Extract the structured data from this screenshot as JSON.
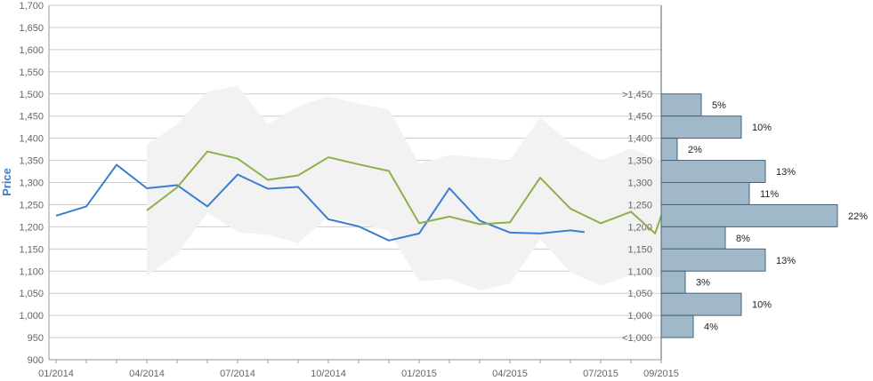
{
  "chart_data": {
    "type": "line",
    "ylabel": "Price",
    "ylim": [
      900,
      1700
    ],
    "yticks": [
      900,
      950,
      1000,
      1050,
      1100,
      1150,
      1200,
      1250,
      1300,
      1350,
      1400,
      1450,
      1500,
      1550,
      1600,
      1650,
      1700
    ],
    "ytick_labels": [
      "900",
      "950",
      "1,000",
      "1,050",
      "1,100",
      "1,150",
      "1,200",
      "1,250",
      "1,300",
      "1,350",
      "1,400",
      "1,450",
      "1,500",
      "1,550",
      "1,600",
      "1,650",
      "1,700"
    ],
    "xlim": [
      "2014-01",
      "2015-09"
    ],
    "xticks": [
      "2014-01",
      "2014-04",
      "2014-07",
      "2014-10",
      "2015-01",
      "2015-04",
      "2015-07",
      "2015-09"
    ],
    "xtick_labels": [
      "01/2014",
      "04/2014",
      "07/2014",
      "10/2014",
      "01/2015",
      "04/2015",
      "07/2015",
      "09/2015"
    ],
    "grid": true,
    "series": [
      {
        "color": "#3a7ed1",
        "points": [
          [
            "2014-01",
            1225
          ],
          [
            "2014-02",
            1246
          ],
          [
            "2014-03",
            1340
          ],
          [
            "2014-04",
            1287
          ],
          [
            "2014-05",
            1294
          ],
          [
            "2014-06",
            1246
          ],
          [
            "2014-07",
            1318
          ],
          [
            "2014-08",
            1286
          ],
          [
            "2014-09",
            1290
          ],
          [
            "2014-10",
            1217
          ],
          [
            "2014-11",
            1201
          ],
          [
            "2014-12",
            1169
          ],
          [
            "2015-01",
            1185
          ],
          [
            "2015-02",
            1287
          ],
          [
            "2015-03",
            1214
          ],
          [
            "2015-04",
            1187
          ],
          [
            "2015-05",
            1185
          ],
          [
            "2015-06",
            1192
          ],
          [
            "2015-06-15",
            1188
          ]
        ]
      },
      {
        "color": "#8db04a",
        "points": [
          [
            "2014-04",
            1237
          ],
          [
            "2014-05",
            1289
          ],
          [
            "2014-06",
            1370
          ],
          [
            "2014-07",
            1354
          ],
          [
            "2014-08",
            1306
          ],
          [
            "2014-09",
            1316
          ],
          [
            "2014-10",
            1357
          ],
          [
            "2014-11",
            1341
          ],
          [
            "2014-12",
            1326
          ],
          [
            "2015-01",
            1208
          ],
          [
            "2015-02",
            1223
          ],
          [
            "2015-03",
            1206
          ],
          [
            "2015-04",
            1210
          ],
          [
            "2015-05",
            1311
          ],
          [
            "2015-06",
            1241
          ],
          [
            "2015-07",
            1208
          ],
          [
            "2015-08",
            1234
          ],
          [
            "2015-08-25",
            1185
          ],
          [
            "2015-09",
            1225
          ]
        ]
      }
    ],
    "band": {
      "color": "#f2f2f2",
      "upper": [
        [
          "2014-04",
          1385
        ],
        [
          "2014-05",
          1432
        ],
        [
          "2014-06",
          1505
        ],
        [
          "2014-07",
          1518
        ],
        [
          "2014-08",
          1432
        ],
        [
          "2014-09",
          1472
        ],
        [
          "2014-10",
          1495
        ],
        [
          "2014-11",
          1478
        ],
        [
          "2014-12",
          1465
        ],
        [
          "2015-01",
          1342
        ],
        [
          "2015-02",
          1362
        ],
        [
          "2015-03",
          1357
        ],
        [
          "2015-04",
          1350
        ],
        [
          "2015-05",
          1447
        ],
        [
          "2015-06",
          1387
        ],
        [
          "2015-07",
          1350
        ],
        [
          "2015-08",
          1377
        ],
        [
          "2015-09",
          1350
        ]
      ],
      "lower": [
        [
          "2014-04",
          1090
        ],
        [
          "2014-05",
          1137
        ],
        [
          "2014-06",
          1232
        ],
        [
          "2014-07",
          1188
        ],
        [
          "2014-08",
          1182
        ],
        [
          "2014-09",
          1163
        ],
        [
          "2014-10",
          1222
        ],
        [
          "2014-11",
          1207
        ],
        [
          "2014-12",
          1190
        ],
        [
          "2015-01",
          1077
        ],
        [
          "2015-02",
          1082
        ],
        [
          "2015-03",
          1057
        ],
        [
          "2015-04",
          1072
        ],
        [
          "2015-05",
          1172
        ],
        [
          "2015-06",
          1097
        ],
        [
          "2015-07",
          1067
        ],
        [
          "2015-08",
          1092
        ],
        [
          "2015-09",
          1085
        ]
      ]
    },
    "distribution": {
      "bar_color": "#a0b8c8",
      "bins": [
        {
          "label": ">1,450",
          "from": 1450,
          "to": 1500,
          "percent": 5,
          "percent_label": "5%"
        },
        {
          "label": "1,450",
          "from": 1400,
          "to": 1450,
          "percent": 10,
          "percent_label": "10%"
        },
        {
          "label": "1,400",
          "from": 1350,
          "to": 1400,
          "percent": 2,
          "percent_label": "2%"
        },
        {
          "label": "1,350",
          "from": 1300,
          "to": 1350,
          "percent": 13,
          "percent_label": "13%"
        },
        {
          "label": "1,300",
          "from": 1250,
          "to": 1300,
          "percent": 11,
          "percent_label": "11%"
        },
        {
          "label": "1,250",
          "from": 1200,
          "to": 1250,
          "percent": 22,
          "percent_label": "22%"
        },
        {
          "label": "1,200",
          "from": 1150,
          "to": 1200,
          "percent": 8,
          "percent_label": "8%"
        },
        {
          "label": "1,150",
          "from": 1100,
          "to": 1150,
          "percent": 13,
          "percent_label": "13%"
        },
        {
          "label": "1,100",
          "from": 1050,
          "to": 1100,
          "percent": 3,
          "percent_label": "3%"
        },
        {
          "label": "1,050",
          "from": 1000,
          "to": 1050,
          "percent": 10,
          "percent_label": "10%"
        },
        {
          "label": "1,000",
          "from": 950,
          "to": 1000,
          "percent": 4,
          "percent_label": "4%"
        },
        {
          "label": "<1,000",
          "from": 950,
          "to": 950,
          "percent": 0,
          "percent_label": ""
        }
      ]
    }
  }
}
